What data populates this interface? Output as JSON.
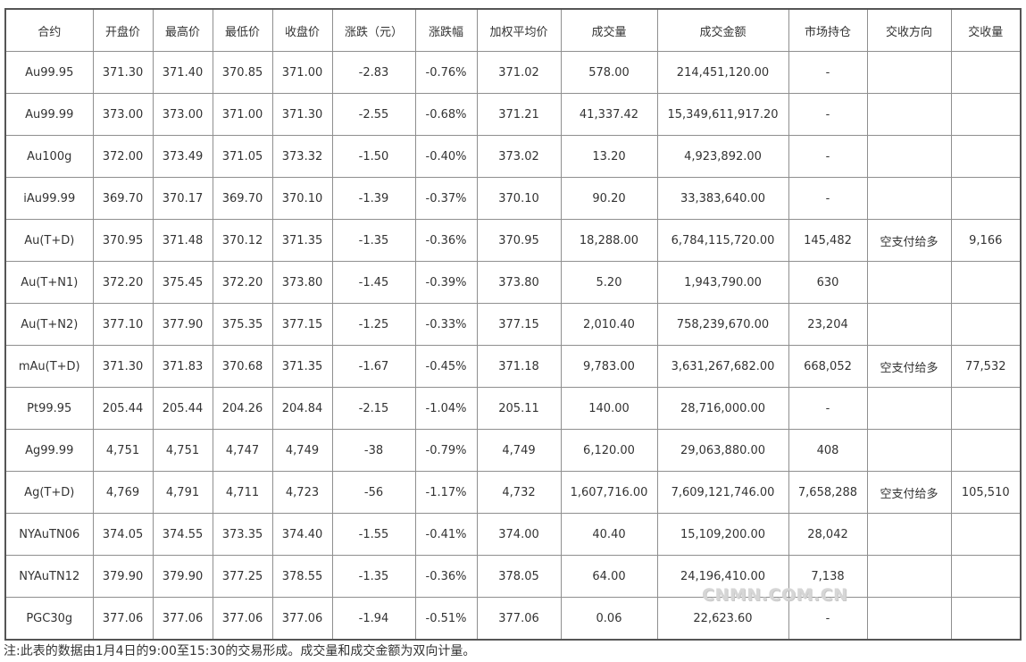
{
  "table": {
    "headers": [
      "合约",
      "开盘价",
      "最高价",
      "最低价",
      "收盘价",
      "涨跌（元）",
      "涨跌幅",
      "加权平均价",
      "成交量",
      "成交金额",
      "市场持仓",
      "交收方向",
      "交收量"
    ],
    "rows": [
      [
        "Au99.95",
        "371.30",
        "371.40",
        "370.85",
        "371.00",
        "-2.83",
        "-0.76%",
        "371.02",
        "578.00",
        "214,451,120.00",
        "-",
        "",
        ""
      ],
      [
        "Au99.99",
        "373.00",
        "373.00",
        "371.00",
        "371.30",
        "-2.55",
        "-0.68%",
        "371.21",
        "41,337.42",
        "15,349,611,917.20",
        "-",
        "",
        ""
      ],
      [
        "Au100g",
        "372.00",
        "373.49",
        "371.05",
        "373.32",
        "-1.50",
        "-0.40%",
        "373.02",
        "13.20",
        "4,923,892.00",
        "-",
        "",
        ""
      ],
      [
        "iAu99.99",
        "369.70",
        "370.17",
        "369.70",
        "370.10",
        "-1.39",
        "-0.37%",
        "370.10",
        "90.20",
        "33,383,640.00",
        "-",
        "",
        ""
      ],
      [
        "Au(T+D)",
        "370.95",
        "371.48",
        "370.12",
        "371.35",
        "-1.35",
        "-0.36%",
        "370.95",
        "18,288.00",
        "6,784,115,720.00",
        "145,482",
        "空支付给多",
        "9,166"
      ],
      [
        "Au(T+N1)",
        "372.20",
        "375.45",
        "372.20",
        "373.80",
        "-1.45",
        "-0.39%",
        "373.80",
        "5.20",
        "1,943,790.00",
        "630",
        "",
        ""
      ],
      [
        "Au(T+N2)",
        "377.10",
        "377.90",
        "375.35",
        "377.15",
        "-1.25",
        "-0.33%",
        "377.15",
        "2,010.40",
        "758,239,670.00",
        "23,204",
        "",
        ""
      ],
      [
        "mAu(T+D)",
        "371.30",
        "371.83",
        "370.68",
        "371.35",
        "-1.67",
        "-0.45%",
        "371.18",
        "9,783.00",
        "3,631,267,682.00",
        "668,052",
        "空支付给多",
        "77,532"
      ],
      [
        "Pt99.95",
        "205.44",
        "205.44",
        "204.26",
        "204.84",
        "-2.15",
        "-1.04%",
        "205.11",
        "140.00",
        "28,716,000.00",
        "-",
        "",
        ""
      ],
      [
        "Ag99.99",
        "4,751",
        "4,751",
        "4,747",
        "4,749",
        "-38",
        "-0.79%",
        "4,749",
        "6,120.00",
        "29,063,880.00",
        "408",
        "",
        ""
      ],
      [
        "Ag(T+D)",
        "4,769",
        "4,791",
        "4,711",
        "4,723",
        "-56",
        "-1.17%",
        "4,732",
        "1,607,716.00",
        "7,609,121,746.00",
        "7,658,288",
        "空支付给多",
        "105,510"
      ],
      [
        "NYAuTN06",
        "374.05",
        "374.55",
        "373.35",
        "374.40",
        "-1.55",
        "-0.41%",
        "374.00",
        "40.40",
        "15,109,200.00",
        "28,042",
        "",
        ""
      ],
      [
        "NYAuTN12",
        "379.90",
        "379.90",
        "377.25",
        "378.55",
        "-1.35",
        "-0.36%",
        "378.05",
        "64.00",
        "24,196,410.00",
        "7,138",
        "",
        ""
      ],
      [
        "PGC30g",
        "377.06",
        "377.06",
        "377.06",
        "377.06",
        "-1.94",
        "-0.51%",
        "377.06",
        "0.06",
        "22,623.60",
        "-",
        "",
        ""
      ]
    ]
  },
  "note": "注:此表的数据由1月4日的9:00至15:30的交易形成。成交量和成交金额为双向计量。",
  "watermark": "CNMN.COM.CN"
}
